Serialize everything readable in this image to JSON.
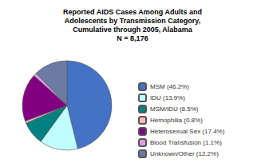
{
  "chart_data": {
    "type": "pie",
    "title": "Reported AIDS Cases Among Adults and\nAdolescents by Transmission Category,\nCumulative through 2005, Alabama\nN = 8,176",
    "categories": [
      "MSM (46.2%)",
      "IDU (13.9%)",
      "MSM/IDU (8.5%)",
      "Hemophilia (0.8%)",
      "Heterosexual Sex (17.4%)",
      "Blood Transfusion (1.1%)",
      "Unknown/Other (12.2%)"
    ],
    "values": [
      46.2,
      13.9,
      8.5,
      0.8,
      17.4,
      1.1,
      12.2
    ],
    "colors": [
      "#4472C4",
      "#C0FFFF",
      "#008080",
      "#FFB6C1",
      "#800080",
      "#DDA0DD",
      "#6B7BA4"
    ],
    "legend": "right"
  }
}
